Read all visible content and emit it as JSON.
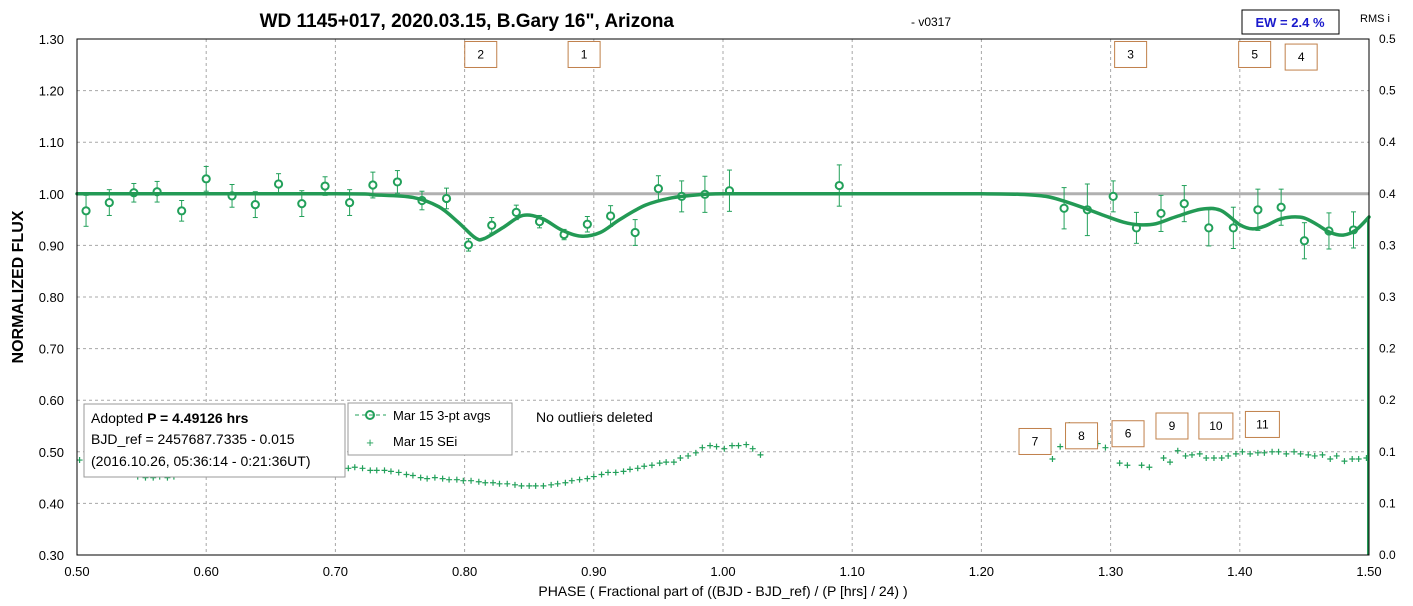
{
  "chart_data": {
    "type": "scatter",
    "title": "WD 1145+017, 2020.03.15, B.Gary 16\", Arizona",
    "version": "-  v0317",
    "xlabel": "PHASE ( Fractional part of ((BJD - BJD_ref) / (P [hrs] / 24) )",
    "ylabel": "NORMALIZED FLUX",
    "y2label": "RMS i",
    "xlim": [
      0.5,
      1.5
    ],
    "ylim": [
      0.3,
      1.3
    ],
    "y2lim": [
      0.0,
      0.5
    ],
    "grid": true,
    "x_ticks": [
      "0.50",
      "0.60",
      "0.70",
      "0.80",
      "0.90",
      "1.00",
      "1.10",
      "1.20",
      "1.30",
      "1.40",
      "1.50"
    ],
    "y_ticks": [
      "0.30",
      "0.40",
      "0.50",
      "0.60",
      "0.70",
      "0.80",
      "0.90",
      "1.00",
      "1.10",
      "1.20",
      "1.30"
    ],
    "y2_ticks": [
      "0.0",
      "0.1",
      "0.1",
      "0.2",
      "0.2",
      "0.3",
      "0.3",
      "0.4",
      "0.4",
      "0.5",
      "0.5"
    ],
    "ew_label": "EW = 2.4 %",
    "info_box": {
      "line1_prefix": "Adopted ",
      "line1_bold": "P = 4.49126 hrs",
      "line2": "BJD_ref = 2457687.7335 - 0.015",
      "line3": "(2016.10.26, 05:36:14 - 0:21:36UT)"
    },
    "note": "No outliers deleted",
    "legend": [
      {
        "label": "Mar 15 3-pt avgs",
        "marker": "circle"
      },
      {
        "label": "Mar 15 SEi",
        "marker": "plus"
      }
    ],
    "colors": {
      "series": "#22a05a",
      "model": "#239a55",
      "baseline": "#b0b0b0",
      "marker_box": "#c0804a",
      "ew": "#1a1acc"
    },
    "markers": [
      {
        "label": "2",
        "x": 0.8125,
        "y": 1.27
      },
      {
        "label": "1",
        "x": 0.8925,
        "y": 1.27
      },
      {
        "label": "3",
        "x": 1.3155,
        "y": 1.27
      },
      {
        "label": "5",
        "x": 1.4115,
        "y": 1.27
      },
      {
        "label": "4",
        "x": 1.4475,
        "y": 1.265
      },
      {
        "label": "7",
        "x": 1.2415,
        "y": 0.52
      },
      {
        "label": "8",
        "x": 1.2775,
        "y": 0.531
      },
      {
        "label": "6",
        "x": 1.3135,
        "y": 0.535
      },
      {
        "label": "9",
        "x": 1.3475,
        "y": 0.55
      },
      {
        "label": "10",
        "x": 1.3815,
        "y": 0.55
      },
      {
        "label": "11",
        "x": 1.4175,
        "y": 0.553
      }
    ],
    "series": [
      {
        "name": "Mar 15 3-pt avgs",
        "marker": "circle",
        "x": [
          0.507,
          0.525,
          0.544,
          0.562,
          0.581,
          0.6,
          0.62,
          0.638,
          0.656,
          0.674,
          0.692,
          0.711,
          0.729,
          0.748,
          0.767,
          0.786,
          0.803,
          0.821,
          0.84,
          0.858,
          0.877,
          0.895,
          0.913,
          0.932,
          0.95,
          0.968,
          0.986,
          1.005,
          1.09,
          1.264,
          1.282,
          1.302,
          1.32,
          1.339,
          1.357,
          1.376,
          1.395,
          1.414,
          1.432,
          1.45,
          1.469,
          1.488
        ],
        "y": [
          0.967,
          0.983,
          1.002,
          1.004,
          0.967,
          1.029,
          0.996,
          0.979,
          1.019,
          0.981,
          1.015,
          0.983,
          1.017,
          1.023,
          0.987,
          0.991,
          0.901,
          0.939,
          0.964,
          0.946,
          0.921,
          0.941,
          0.957,
          0.925,
          1.01,
          0.995,
          0.999,
          1.006,
          1.016,
          0.972,
          0.969,
          0.995,
          0.934,
          0.962,
          0.981,
          0.934,
          0.934,
          0.969,
          0.974,
          0.909,
          0.928,
          0.93
        ],
        "err": [
          0.03,
          0.025,
          0.018,
          0.02,
          0.02,
          0.024,
          0.022,
          0.025,
          0.02,
          0.025,
          0.018,
          0.025,
          0.025,
          0.022,
          0.018,
          0.02,
          0.012,
          0.015,
          0.014,
          0.012,
          0.01,
          0.015,
          0.02,
          0.025,
          0.025,
          0.03,
          0.035,
          0.04,
          0.04,
          0.04,
          0.05,
          0.03,
          0.03,
          0.035,
          0.035,
          0.035,
          0.04,
          0.04,
          0.035,
          0.035,
          0.035,
          0.035
        ]
      },
      {
        "name": "Mar 15 SEi",
        "marker": "plus",
        "axis": "right",
        "x": [
          0.502,
          0.508,
          0.514,
          0.519,
          0.525,
          0.531,
          0.536,
          0.542,
          0.547,
          0.553,
          0.559,
          0.564,
          0.57,
          0.575,
          0.581,
          0.587,
          0.592,
          0.598,
          0.603,
          0.609,
          0.615,
          0.62,
          0.626,
          0.631,
          0.637,
          0.643,
          0.648,
          0.654,
          0.659,
          0.665,
          0.671,
          0.676,
          0.682,
          0.687,
          0.693,
          0.699,
          0.704,
          0.71,
          0.715,
          0.721,
          0.727,
          0.732,
          0.738,
          0.743,
          0.749,
          0.755,
          0.76,
          0.766,
          0.771,
          0.777,
          0.783,
          0.788,
          0.794,
          0.799,
          0.805,
          0.811,
          0.816,
          0.822,
          0.827,
          0.833,
          0.839,
          0.844,
          0.85,
          0.855,
          0.861,
          0.867,
          0.872,
          0.878,
          0.883,
          0.889,
          0.895,
          0.9,
          0.906,
          0.911,
          0.917,
          0.923,
          0.928,
          0.934,
          0.939,
          0.945,
          0.951,
          0.956,
          0.962,
          0.967,
          0.973,
          0.979,
          0.984,
          0.99,
          0.995,
          1.001,
          1.007,
          1.012,
          1.018,
          1.023,
          1.029,
          1.255,
          1.261,
          1.268,
          1.274,
          1.279,
          1.285,
          1.29,
          1.296,
          1.307,
          1.313,
          1.324,
          1.33,
          1.341,
          1.346,
          1.352,
          1.358,
          1.363,
          1.369,
          1.374,
          1.38,
          1.386,
          1.391,
          1.397,
          1.402,
          1.408,
          1.414,
          1.419,
          1.425,
          1.43,
          1.436,
          1.442,
          1.447,
          1.453,
          1.458,
          1.464,
          1.47,
          1.475,
          1.481,
          1.487,
          1.492,
          1.498
        ],
        "y": [
          0.092,
          0.086,
          0.088,
          0.088,
          0.082,
          0.08,
          0.08,
          0.078,
          0.076,
          0.075,
          0.075,
          0.076,
          0.075,
          0.076,
          0.078,
          0.079,
          0.079,
          0.081,
          0.082,
          0.083,
          0.082,
          0.083,
          0.081,
          0.082,
          0.081,
          0.081,
          0.082,
          0.08,
          0.081,
          0.08,
          0.08,
          0.081,
          0.08,
          0.08,
          0.081,
          0.083,
          0.084,
          0.084,
          0.085,
          0.084,
          0.082,
          0.082,
          0.082,
          0.081,
          0.08,
          0.078,
          0.077,
          0.075,
          0.074,
          0.075,
          0.074,
          0.073,
          0.073,
          0.072,
          0.072,
          0.071,
          0.07,
          0.07,
          0.069,
          0.069,
          0.068,
          0.067,
          0.067,
          0.067,
          0.067,
          0.068,
          0.069,
          0.07,
          0.072,
          0.073,
          0.074,
          0.076,
          0.078,
          0.08,
          0.08,
          0.081,
          0.083,
          0.084,
          0.086,
          0.087,
          0.089,
          0.09,
          0.09,
          0.094,
          0.096,
          0.099,
          0.104,
          0.106,
          0.105,
          0.103,
          0.106,
          0.106,
          0.107,
          0.103,
          0.097,
          0.093,
          0.105,
          0.126,
          0.121,
          0.117,
          0.11,
          0.108,
          0.104,
          0.089,
          0.087,
          0.087,
          0.085,
          0.094,
          0.09,
          0.101,
          0.096,
          0.097,
          0.098,
          0.094,
          0.094,
          0.094,
          0.096,
          0.098,
          0.1,
          0.098,
          0.099,
          0.099,
          0.1,
          0.1,
          0.098,
          0.1,
          0.098,
          0.097,
          0.096,
          0.097,
          0.093,
          0.096,
          0.091,
          0.093,
          0.093,
          0.094
        ]
      },
      {
        "name": "",
        "type": "line",
        "x": [
          0.5,
          0.7,
          0.73,
          0.76,
          0.78,
          0.795,
          0.808,
          0.815,
          0.83,
          0.845,
          0.86,
          0.875,
          0.89,
          0.905,
          0.92,
          0.94,
          0.96,
          0.98,
          1.0,
          1.03,
          1.06,
          1.1,
          1.15,
          1.2,
          1.23,
          1.25,
          1.265,
          1.28,
          1.295,
          1.31,
          1.322,
          1.335,
          1.35,
          1.37,
          1.385,
          1.4,
          1.41,
          1.42,
          1.43,
          1.44,
          1.45,
          1.46,
          1.47,
          1.48,
          1.49,
          1.5
        ],
        "y": [
          1.0,
          1.0,
          0.998,
          0.993,
          0.975,
          0.945,
          0.915,
          0.913,
          0.935,
          0.958,
          0.952,
          0.93,
          0.918,
          0.925,
          0.95,
          0.978,
          0.992,
          0.998,
          1.0,
          1.0,
          1.0,
          1.0,
          1.0,
          1.0,
          0.999,
          0.995,
          0.985,
          0.972,
          0.958,
          0.945,
          0.94,
          0.942,
          0.955,
          0.97,
          0.968,
          0.94,
          0.932,
          0.938,
          0.95,
          0.955,
          0.953,
          0.94,
          0.925,
          0.92,
          0.93,
          0.955
        ]
      }
    ],
    "baseline_y": 1.0
  }
}
